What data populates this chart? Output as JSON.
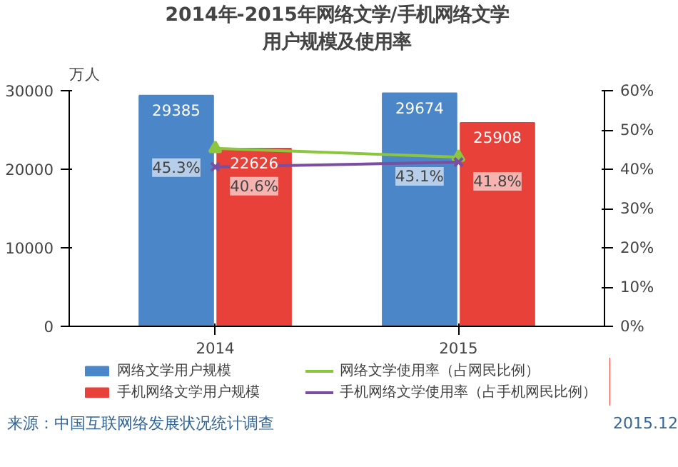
{
  "chart_data": {
    "type": "bar",
    "title": "2014年-2015年网络文学/手机网络文学",
    "subtitle": "用户规模及使用率",
    "ylabel": "万人",
    "categories": [
      "2014",
      "2015"
    ],
    "series": [
      {
        "name": "网络文学用户规模",
        "color": "#4a86c8",
        "values": [
          29385,
          29674
        ],
        "value_labels": [
          "29385",
          "29674"
        ]
      },
      {
        "name": "手机网络文学用户规模",
        "color": "#e8413a",
        "values": [
          22626,
          25908
        ],
        "value_labels": [
          "22626",
          "25908"
        ]
      },
      {
        "name": "网络文学使用率（占网民比例）",
        "type": "line",
        "axis": "y2",
        "marker": "triangle",
        "color": "#8cc63f",
        "values": [
          45.3,
          43.1
        ],
        "value_labels": [
          "45.3%",
          "43.1%"
        ]
      },
      {
        "name": "手机网络文学使用率（占手机网民比例）",
        "type": "line",
        "axis": "y2",
        "marker": "x",
        "color": "#7b4fa0",
        "values": [
          40.6,
          41.8
        ],
        "value_labels": [
          "40.6%",
          "41.8%"
        ]
      }
    ],
    "ylim": [
      0,
      30000
    ],
    "yticks": [
      0,
      10000,
      20000,
      30000
    ],
    "y2lim": [
      0,
      60
    ],
    "y2ticks": [
      {
        "value": 0,
        "label": "0%"
      },
      {
        "value": 10,
        "label": "10%"
      },
      {
        "value": 20,
        "label": "20%"
      },
      {
        "value": 30,
        "label": "30%"
      },
      {
        "value": 40,
        "label": "40%"
      },
      {
        "value": 50,
        "label": "50%"
      },
      {
        "value": 60,
        "label": "60%"
      }
    ],
    "legend": "bottom",
    "grid": false,
    "annotations": [
      "来源：中国互联网络发展状况统计调查",
      "2015.12"
    ]
  }
}
